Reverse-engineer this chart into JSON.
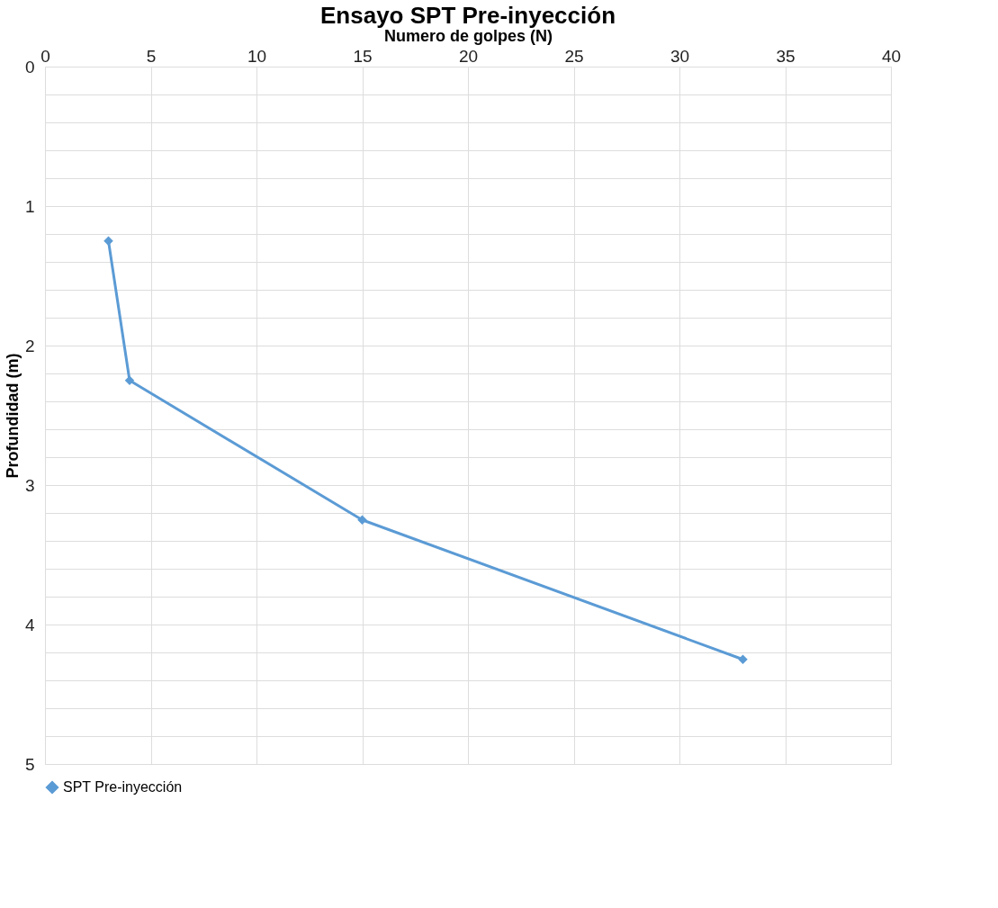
{
  "chart_data": {
    "type": "line",
    "title": "Ensayo SPT Pre-inyección",
    "xlabel": "Numero de golpes (N)",
    "ylabel": "Profundidad (m)",
    "series": [
      {
        "name": "SPT Pre-inyección",
        "color": "#5b9bd5",
        "x": [
          3,
          4,
          15,
          33
        ],
        "values": [
          1.25,
          2.25,
          3.25,
          4.25
        ]
      }
    ],
    "xlim": [
      0,
      40
    ],
    "xticks": [
      0,
      5,
      10,
      15,
      20,
      25,
      30,
      35,
      40
    ],
    "ylim": [
      5,
      0
    ],
    "yticks": [
      0,
      {
        "value": 0.2,
        "label": null
      },
      {
        "value": 0.4,
        "label": null
      },
      {
        "value": 0.6,
        "label": null
      },
      {
        "value": 0.8,
        "label": null
      },
      1,
      {
        "value": 1.2,
        "label": null
      },
      {
        "value": 1.4,
        "label": null
      },
      {
        "value": 1.6,
        "label": null
      },
      {
        "value": 1.8,
        "label": null
      },
      2,
      {
        "value": 2.2,
        "label": null
      },
      {
        "value": 2.4,
        "label": null
      },
      {
        "value": 2.6,
        "label": null
      },
      {
        "value": 2.8,
        "label": null
      },
      3,
      {
        "value": 3.2,
        "label": null
      },
      {
        "value": 3.4,
        "label": null
      },
      {
        "value": 3.6,
        "label": null
      },
      {
        "value": 3.8,
        "label": null
      },
      4,
      {
        "value": 4.2,
        "label": null
      },
      {
        "value": 4.4,
        "label": null
      },
      {
        "value": 4.6,
        "label": null
      },
      {
        "value": 4.8,
        "label": null
      },
      5
    ],
    "grid": true,
    "legend": "bottom",
    "marker": "diamond",
    "line_style": "solid"
  }
}
